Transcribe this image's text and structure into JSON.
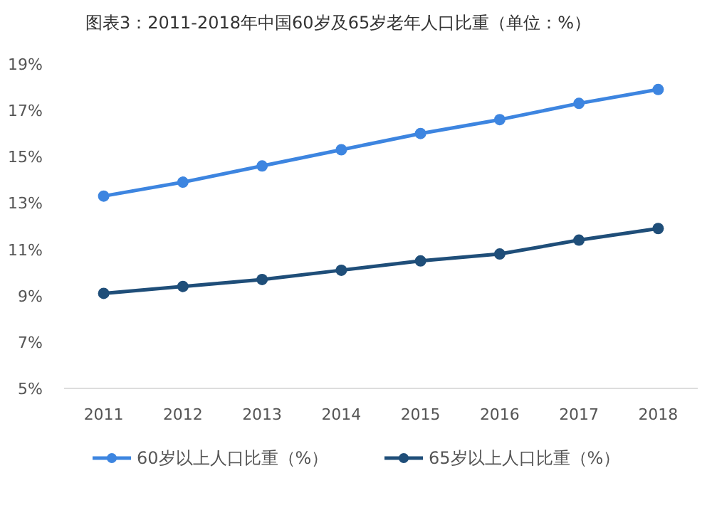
{
  "chart_data": {
    "type": "line",
    "title": "图表3：2011-2018年中国60岁及65岁老年人口比重（单位：%）",
    "categories": [
      "2011",
      "2012",
      "2013",
      "2014",
      "2015",
      "2016",
      "2017",
      "2018"
    ],
    "series": [
      {
        "name": "60岁以上人口比重（%）",
        "color": "#3d85e0",
        "values": [
          13.3,
          13.9,
          14.6,
          15.3,
          16.0,
          16.6,
          17.3,
          17.9
        ]
      },
      {
        "name": "65岁以上人口比重（%）",
        "color": "#1f4e79",
        "values": [
          9.1,
          9.4,
          9.7,
          10.1,
          10.5,
          10.8,
          11.4,
          11.9
        ]
      }
    ],
    "ylim": [
      5,
      19
    ],
    "yticks": [
      {
        "value": 5,
        "label": "5%"
      },
      {
        "value": 7,
        "label": "7%"
      },
      {
        "value": 9,
        "label": "9%"
      },
      {
        "value": 11,
        "label": "11%"
      },
      {
        "value": 13,
        "label": "13%"
      },
      {
        "value": 15,
        "label": "15%"
      },
      {
        "value": 17,
        "label": "17%"
      },
      {
        "value": 19,
        "label": "19%"
      }
    ],
    "grid": false,
    "legend": "bottom",
    "marker": "circle",
    "line_style": "solid"
  }
}
